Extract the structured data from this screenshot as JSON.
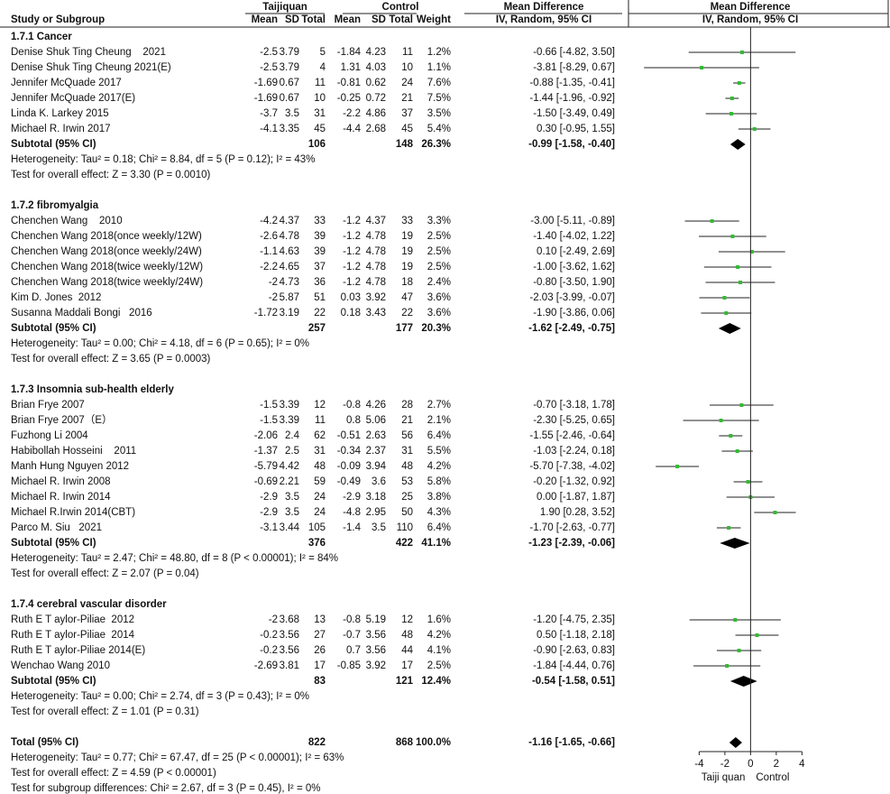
{
  "chart_data": {
    "type": "forest",
    "headers": {
      "study": "Study or Subgroup",
      "experimental": "Taijiquan",
      "control": "Control",
      "mean": "Mean",
      "sd": "SD",
      "total": "Total",
      "weight": "Weight",
      "effect": "Mean Difference",
      "method": "IV, Random, 95% CI"
    },
    "groups": [
      {
        "title": "1.7.1 Cancer",
        "studies": [
          {
            "n": "Denise Shuk Ting Cheung    2021",
            "t": [
              -2.5,
              3.79,
              5
            ],
            "c": [
              -1.84,
              4.23,
              11
            ],
            "w": "1.2%",
            "md": -0.66,
            "lo": -4.82,
            "hi": 3.5,
            "ci": "-0.66 [-4.82, 3.50]"
          },
          {
            "n": "Denise Shuk Ting Cheung 2021(E)",
            "t": [
              -2.5,
              3.79,
              4
            ],
            "c": [
              1.31,
              4.03,
              10
            ],
            "w": "1.1%",
            "md": -3.81,
            "lo": -8.29,
            "hi": 0.67,
            "ci": "-3.81 [-8.29, 0.67]"
          },
          {
            "n": "Jennifer McQuade 2017",
            "t": [
              -1.69,
              0.67,
              11
            ],
            "c": [
              -0.81,
              0.62,
              24
            ],
            "w": "7.6%",
            "md": -0.88,
            "lo": -1.35,
            "hi": -0.41,
            "ci": "-0.88 [-1.35, -0.41]"
          },
          {
            "n": "Jennifer McQuade 2017(E)",
            "t": [
              -1.69,
              0.67,
              10
            ],
            "c": [
              -0.25,
              0.72,
              21
            ],
            "w": "7.5%",
            "md": -1.44,
            "lo": -1.96,
            "hi": -0.92,
            "ci": "-1.44 [-1.96, -0.92]"
          },
          {
            "n": "Linda K. Larkey 2015",
            "t": [
              -3.7,
              3.5,
              31
            ],
            "c": [
              -2.2,
              4.86,
              37
            ],
            "w": "3.5%",
            "md": -1.5,
            "lo": -3.49,
            "hi": 0.49,
            "ci": "-1.50 [-3.49, 0.49]"
          },
          {
            "n": "Michael R. Irwin 2017",
            "t": [
              -4.1,
              3.35,
              45
            ],
            "c": [
              -4.4,
              2.68,
              45
            ],
            "w": "5.4%",
            "md": 0.3,
            "lo": -0.95,
            "hi": 1.55,
            "ci": "0.30 [-0.95, 1.55]"
          }
        ],
        "subtotal": {
          "label": "Subtotal (95% CI)",
          "tn": 106,
          "cn": 148,
          "w": "26.3%",
          "md": -0.99,
          "lo": -1.58,
          "hi": -0.4,
          "ci": "-0.99 [-1.58, -0.40]"
        },
        "heterogeneity": "Heterogeneity: Tau² = 0.18; Chi² = 8.84, df = 5 (P = 0.12); I² = 43%",
        "overall": "Test for overall effect: Z = 3.30 (P = 0.0010)"
      },
      {
        "title": "1.7.2 fibromyalgia",
        "studies": [
          {
            "n": "Chenchen Wang    2010",
            "t": [
              -4.2,
              4.37,
              33
            ],
            "c": [
              -1.2,
              4.37,
              33
            ],
            "w": "3.3%",
            "md": -3.0,
            "lo": -5.11,
            "hi": -0.89,
            "ci": "-3.00 [-5.11, -0.89]"
          },
          {
            "n": "Chenchen Wang 2018(once weekly/12W)",
            "t": [
              -2.6,
              4.78,
              39
            ],
            "c": [
              -1.2,
              4.78,
              19
            ],
            "w": "2.5%",
            "md": -1.4,
            "lo": -4.02,
            "hi": 1.22,
            "ci": "-1.40 [-4.02, 1.22]"
          },
          {
            "n": "Chenchen Wang 2018(once weekly/24W)",
            "t": [
              -1.1,
              4.63,
              39
            ],
            "c": [
              -1.2,
              4.78,
              19
            ],
            "w": "2.5%",
            "md": 0.1,
            "lo": -2.49,
            "hi": 2.69,
            "ci": "0.10 [-2.49, 2.69]"
          },
          {
            "n": "Chenchen Wang 2018(twice weekly/12W)",
            "t": [
              -2.2,
              4.65,
              37
            ],
            "c": [
              -1.2,
              4.78,
              19
            ],
            "w": "2.5%",
            "md": -1.0,
            "lo": -3.62,
            "hi": 1.62,
            "ci": "-1.00 [-3.62, 1.62]"
          },
          {
            "n": "Chenchen Wang 2018(twice weekly/24W)",
            "t": [
              -2,
              4.73,
              36
            ],
            "c": [
              -1.2,
              4.78,
              18
            ],
            "w": "2.4%",
            "md": -0.8,
            "lo": -3.5,
            "hi": 1.9,
            "ci": "-0.80 [-3.50, 1.90]"
          },
          {
            "n": "Kim D. Jones  2012",
            "t": [
              -2,
              5.87,
              51
            ],
            "c": [
              0.03,
              3.92,
              47
            ],
            "w": "3.6%",
            "md": -2.03,
            "lo": -3.99,
            "hi": -0.07,
            "ci": "-2.03 [-3.99, -0.07]"
          },
          {
            "n": "Susanna Maddali Bongi   2016",
            "t": [
              -1.72,
              3.19,
              22
            ],
            "c": [
              0.18,
              3.43,
              22
            ],
            "w": "3.6%",
            "md": -1.9,
            "lo": -3.86,
            "hi": 0.06,
            "ci": "-1.90 [-3.86, 0.06]"
          }
        ],
        "subtotal": {
          "label": "Subtotal (95% CI)",
          "tn": 257,
          "cn": 177,
          "w": "20.3%",
          "md": -1.62,
          "lo": -2.49,
          "hi": -0.75,
          "ci": "-1.62 [-2.49, -0.75]"
        },
        "heterogeneity": "Heterogeneity: Tau² = 0.00; Chi² = 4.18, df = 6 (P = 0.65); I² = 0%",
        "overall": "Test for overall effect: Z = 3.65 (P = 0.0003)"
      },
      {
        "title": "1.7.3 Insomnia sub-health elderly",
        "studies": [
          {
            "n": "Brian Frye 2007",
            "t": [
              -1.5,
              3.39,
              12
            ],
            "c": [
              -0.8,
              4.26,
              28
            ],
            "w": "2.7%",
            "md": -0.7,
            "lo": -3.18,
            "hi": 1.78,
            "ci": "-0.70 [-3.18, 1.78]"
          },
          {
            "n": "Brian Frye 2007（E）",
            "t": [
              -1.5,
              3.39,
              11
            ],
            "c": [
              0.8,
              5.06,
              21
            ],
            "w": "2.1%",
            "md": -2.3,
            "lo": -5.25,
            "hi": 0.65,
            "ci": "-2.30 [-5.25, 0.65]"
          },
          {
            "n": "Fuzhong Li 2004",
            "t": [
              -2.06,
              2.4,
              62
            ],
            "c": [
              -0.51,
              2.63,
              56
            ],
            "w": "6.4%",
            "md": -1.55,
            "lo": -2.46,
            "hi": -0.64,
            "ci": "-1.55 [-2.46, -0.64]"
          },
          {
            "n": "Habibollah Hosseini    2011",
            "t": [
              -1.37,
              2.5,
              31
            ],
            "c": [
              -0.34,
              2.37,
              31
            ],
            "w": "5.5%",
            "md": -1.03,
            "lo": -2.24,
            "hi": 0.18,
            "ci": "-1.03 [-2.24, 0.18]"
          },
          {
            "n": "Manh Hung Nguyen 2012",
            "t": [
              -5.79,
              4.42,
              48
            ],
            "c": [
              -0.09,
              3.94,
              48
            ],
            "w": "4.2%",
            "md": -5.7,
            "lo": -7.38,
            "hi": -4.02,
            "ci": "-5.70 [-7.38, -4.02]"
          },
          {
            "n": "Michael R. Irwin 2008",
            "t": [
              -0.69,
              2.21,
              59
            ],
            "c": [
              -0.49,
              3.6,
              53
            ],
            "w": "5.8%",
            "md": -0.2,
            "lo": -1.32,
            "hi": 0.92,
            "ci": "-0.20 [-1.32, 0.92]"
          },
          {
            "n": "Michael R. Irwin 2014",
            "t": [
              -2.9,
              3.5,
              24
            ],
            "c": [
              -2.9,
              3.18,
              25
            ],
            "w": "3.8%",
            "md": 0,
            "lo": -1.87,
            "hi": 1.87,
            "ci": "0.00 [-1.87, 1.87]"
          },
          {
            "n": "Michael R.Irwin 2014(CBT)",
            "t": [
              -2.9,
              3.5,
              24
            ],
            "c": [
              -4.8,
              2.95,
              50
            ],
            "w": "4.3%",
            "md": 1.9,
            "lo": 0.28,
            "hi": 3.52,
            "ci": "1.90 [0.28, 3.52]"
          },
          {
            "n": "Parco M. Siu   2021",
            "t": [
              -3.1,
              3.44,
              105
            ],
            "c": [
              -1.4,
              3.5,
              110
            ],
            "w": "6.4%",
            "md": -1.7,
            "lo": -2.63,
            "hi": -0.77,
            "ci": "-1.70 [-2.63, -0.77]"
          }
        ],
        "subtotal": {
          "label": "Subtotal (95% CI)",
          "tn": 376,
          "cn": 422,
          "w": "41.1%",
          "md": -1.23,
          "lo": -2.39,
          "hi": -0.06,
          "ci": "-1.23 [-2.39, -0.06]"
        },
        "heterogeneity": "Heterogeneity: Tau² = 2.47; Chi² = 48.80, df = 8 (P < 0.00001); I² = 84%",
        "overall": "Test for overall effect: Z = 2.07 (P = 0.04)"
      },
      {
        "title": "1.7.4 cerebral vascular disorder",
        "studies": [
          {
            "n": "Ruth E T aylor-Piliae  2012",
            "t": [
              -2,
              3.68,
              13
            ],
            "c": [
              -0.8,
              5.19,
              12
            ],
            "w": "1.6%",
            "md": -1.2,
            "lo": -4.75,
            "hi": 2.35,
            "ci": "-1.20 [-4.75, 2.35]"
          },
          {
            "n": "Ruth E T aylor-Piliae  2014",
            "t": [
              -0.2,
              3.56,
              27
            ],
            "c": [
              -0.7,
              3.56,
              48
            ],
            "w": "4.2%",
            "md": 0.5,
            "lo": -1.18,
            "hi": 2.18,
            "ci": "0.50 [-1.18, 2.18]"
          },
          {
            "n": "Ruth E T aylor-Piliae 2014(E)",
            "t": [
              -0.2,
              3.56,
              26
            ],
            "c": [
              0.7,
              3.56,
              44
            ],
            "w": "4.1%",
            "md": -0.9,
            "lo": -2.63,
            "hi": 0.83,
            "ci": "-0.90 [-2.63, 0.83]"
          },
          {
            "n": "Wenchao Wang 2010",
            "t": [
              -2.69,
              3.81,
              17
            ],
            "c": [
              -0.85,
              3.92,
              17
            ],
            "w": "2.5%",
            "md": -1.84,
            "lo": -4.44,
            "hi": 0.76,
            "ci": "-1.84 [-4.44, 0.76]"
          }
        ],
        "subtotal": {
          "label": "Subtotal (95% CI)",
          "tn": 83,
          "cn": 121,
          "w": "12.4%",
          "md": -0.54,
          "lo": -1.58,
          "hi": 0.51,
          "ci": "-0.54 [-1.58, 0.51]"
        },
        "heterogeneity": "Heterogeneity: Tau² = 0.00; Chi² = 2.74, df = 3 (P = 0.43); I² = 0%",
        "overall": "Test for overall effect: Z = 1.01 (P = 0.31)"
      }
    ],
    "total": {
      "label": "Total (95% CI)",
      "tn": 822,
      "cn": 868,
      "w": "100.0%",
      "md": -1.16,
      "lo": -1.65,
      "hi": -0.66,
      "ci": "-1.16 [-1.65, -0.66]"
    },
    "total_heterogeneity": "Heterogeneity: Tau² = 0.77; Chi² = 67.47, df = 25 (P < 0.00001); I² = 63%",
    "total_overall": "Test for overall effect: Z = 4.59 (P < 0.00001)",
    "subgroup_differences": "Test for subgroup differences: Chi² = 2.67, df = 3 (P = 0.45), I² = 0%",
    "xlim": [
      -9.5,
      10.5
    ],
    "xticks": [
      -4,
      -2,
      0,
      2,
      4
    ],
    "xlabel_left": "Taiji quan",
    "xlabel_right": "Control",
    "marker_color": "#33bb33"
  }
}
